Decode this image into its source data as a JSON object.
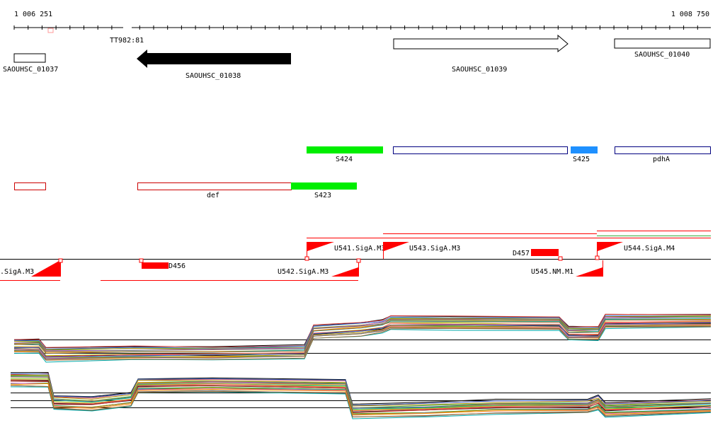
{
  "ruler": {
    "start_label": "1 006 251",
    "end_label": "1 008 750"
  },
  "genes": [
    {
      "label": "SAOUHSC_01037",
      "strand": "none",
      "style": "outline"
    },
    {
      "label": "SAOUHSC_01038",
      "strand": "-",
      "style": "filled"
    },
    {
      "label": "SAOUHSC_01039",
      "strand": "+",
      "style": "outline"
    },
    {
      "label": "SAOUHSC_01040",
      "strand": "none",
      "style": "outline"
    }
  ],
  "marker_label": "TT982:81",
  "features_row1": [
    {
      "label": "S424",
      "color": "#00ee00"
    },
    {
      "label": "",
      "color": "#000080"
    },
    {
      "label": "S425",
      "color": "#1e90ff"
    },
    {
      "label": "pdhA",
      "color": "#000080"
    }
  ],
  "features_row2": [
    {
      "label": "",
      "color": "#cc0000"
    },
    {
      "label": "def",
      "color": "#cc0000"
    },
    {
      "label": "S423",
      "color": "#00ee00"
    }
  ],
  "promoters": [
    {
      "label": ".SigA.M3"
    },
    {
      "label": "D456"
    },
    {
      "label": "U541.SigA.M3"
    },
    {
      "label": "U543.SigA.M3"
    },
    {
      "label": "U542.SigA.M3"
    },
    {
      "label": "D457"
    },
    {
      "label": "U545.NM.M1"
    },
    {
      "label": "U544.SigA.M4"
    }
  ],
  "colors": {
    "gene_filled": "#000000",
    "feature_green": "#00ee00",
    "feature_blue": "#1e90ff",
    "feature_navy": "#000080",
    "promoter_red": "#ff0000",
    "expression_palette": [
      "#000000",
      "#cc3333",
      "#3366cc",
      "#33aa33",
      "#aa8800",
      "#cc66cc",
      "#ff9900",
      "#666666",
      "#00aaaa",
      "#996633",
      "#99cc00",
      "#ff6666"
    ]
  }
}
